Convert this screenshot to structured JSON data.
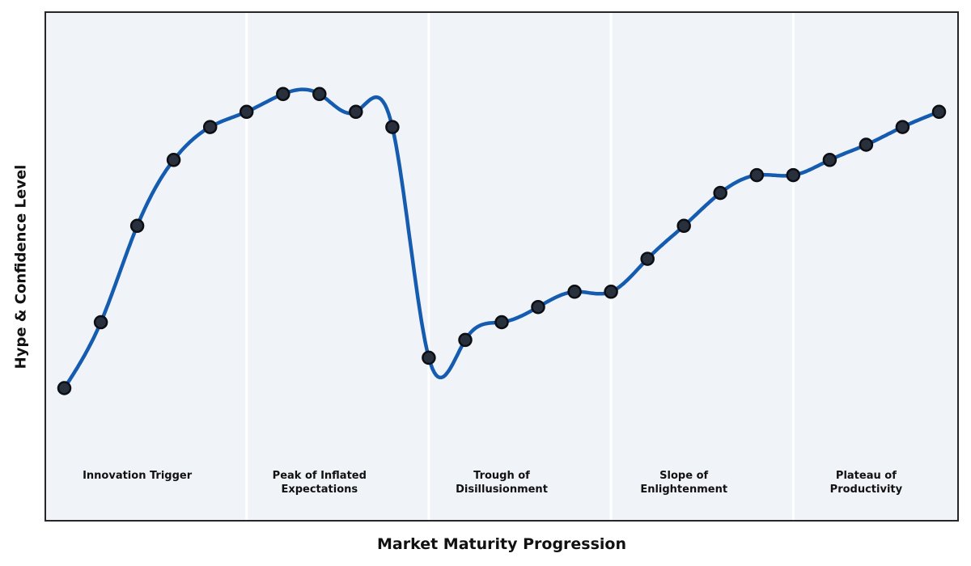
{
  "chart_data": {
    "type": "line",
    "title": "",
    "xlabel": "Market Maturity Progression",
    "ylabel": "Hype & Confidence Level",
    "x": [
      0,
      1,
      2,
      3,
      4,
      5,
      6,
      7,
      8,
      9,
      10,
      11,
      12,
      13,
      14,
      15,
      16,
      17,
      18,
      19,
      20,
      21,
      22,
      23,
      24
    ],
    "values": [
      26,
      39,
      58,
      71,
      77.5,
      80.5,
      84,
      84,
      80.5,
      77.5,
      32,
      35.5,
      39,
      42,
      45,
      45,
      51.5,
      58,
      64.5,
      68,
      68,
      71,
      74,
      77.5,
      80.5
    ],
    "xlim": [
      -0.5,
      24.5
    ],
    "ylim": [
      0,
      100
    ],
    "grid": false,
    "legend_position": "none",
    "interpolation": "natural-cubic-spline",
    "markers": true,
    "phase_boundaries_x": [
      5,
      10,
      15,
      20
    ],
    "phase_label_center_x": [
      2,
      7,
      12,
      17,
      22
    ],
    "axis_ticks": "none"
  },
  "phases": [
    {
      "label": "Innovation Trigger",
      "lines": [
        "Innovation Trigger",
        ""
      ]
    },
    {
      "label": "Peak of Inflated Expectations",
      "lines": [
        "Peak of Inflated",
        "Expectations"
      ]
    },
    {
      "label": "Trough of Disillusionment",
      "lines": [
        "Trough of",
        "Disillusionment"
      ]
    },
    {
      "label": "Slope of Enlightenment",
      "lines": [
        "Slope of",
        "Enlightenment"
      ]
    },
    {
      "label": "Plateau of Productivity",
      "lines": [
        "Plateau of",
        "Productivity"
      ]
    }
  ],
  "colors": {
    "curve": "#155cb0",
    "marker_fill": "#28303e",
    "marker_edge": "#0c0e12",
    "plot_background": "#f0f3f8",
    "phase_divider": "#ffffff",
    "frame": "#262626",
    "text": "#111111",
    "figure_background": "#ffffff"
  }
}
